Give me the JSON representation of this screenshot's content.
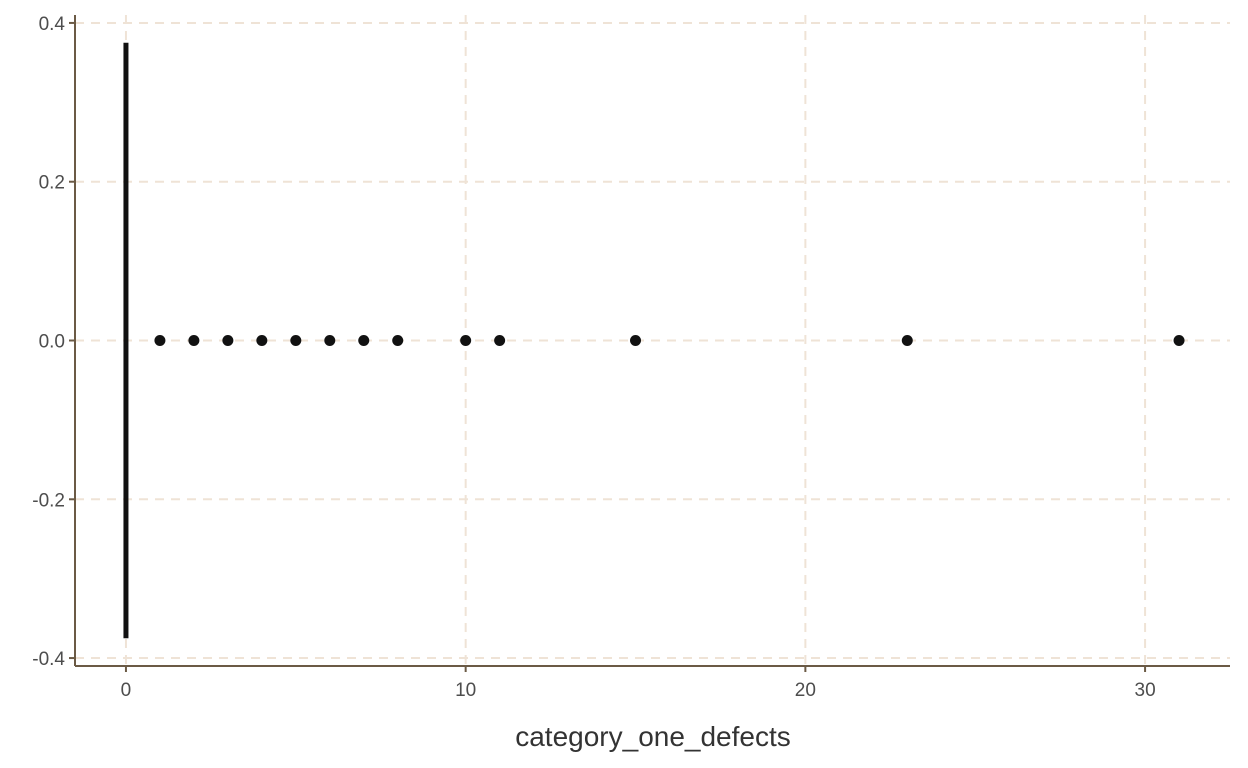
{
  "chart_data": {
    "type": "boxplot",
    "xlabel": "category_one_defects",
    "ylabel": "",
    "xlim": [
      -1.5,
      32.5
    ],
    "ylim": [
      -0.41,
      0.41
    ],
    "x_ticks": [
      0,
      10,
      20,
      30
    ],
    "y_ticks": [
      -0.4,
      -0.2,
      0.0,
      0.2,
      0.4
    ],
    "x_tick_labels": [
      "0",
      "10",
      "20",
      "30"
    ],
    "y_tick_labels": [
      "-0.4",
      "-0.2",
      "0.0",
      "0.2",
      "0.4"
    ],
    "grid": true,
    "box": {
      "min": 0,
      "q1": 0,
      "median": 0,
      "q3": 0,
      "max": 0,
      "y_center": 0.0,
      "half_width": 0.375
    },
    "outliers": [
      1,
      2,
      3,
      4,
      5,
      6,
      7,
      8,
      10,
      11,
      15,
      23,
      31
    ],
    "colors": {
      "axis": "#6b5a45",
      "grid": "#efe3d6",
      "points": "#111111",
      "box": "#111111",
      "text": "#4d4d4d"
    }
  }
}
